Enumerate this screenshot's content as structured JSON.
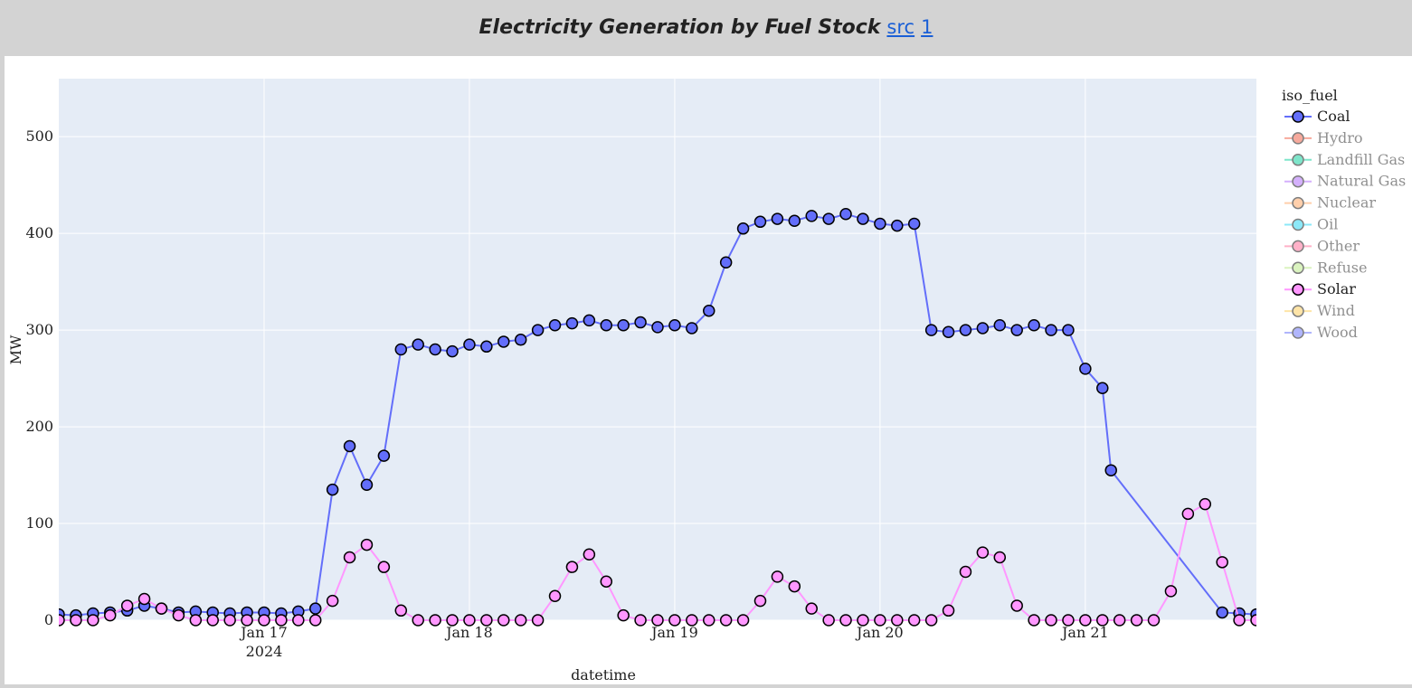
{
  "header": {
    "title": "Electricity Generation by Fuel Stock",
    "links": [
      "src",
      "1"
    ]
  },
  "chart_data": {
    "type": "line",
    "x_label": "datetime",
    "y_label": "MW",
    "legend_title": "iso_fuel",
    "legend_position": "right",
    "grid": true,
    "markers": true,
    "xlim": [
      "2024-01-16 00:00",
      "2024-01-21 20:00"
    ],
    "xticks": [
      {
        "value": "2024-01-17 00:00",
        "label": "Jan 17\n2024"
      },
      {
        "value": "2024-01-18 00:00",
        "label": "Jan 18"
      },
      {
        "value": "2024-01-19 00:00",
        "label": "Jan 19"
      },
      {
        "value": "2024-01-20 00:00",
        "label": "Jan 20"
      },
      {
        "value": "2024-01-21 00:00",
        "label": "Jan 21"
      }
    ],
    "ylim": [
      0,
      560
    ],
    "yticks": [
      0,
      100,
      200,
      300,
      400,
      500
    ],
    "series": [
      {
        "name": "Coal",
        "color": "#636efa",
        "visible": true,
        "x": [
          "2024-01-16 00:00",
          "2024-01-16 02:00",
          "2024-01-16 04:00",
          "2024-01-16 06:00",
          "2024-01-16 08:00",
          "2024-01-16 10:00",
          "2024-01-16 12:00",
          "2024-01-16 14:00",
          "2024-01-16 16:00",
          "2024-01-16 18:00",
          "2024-01-16 20:00",
          "2024-01-16 22:00",
          "2024-01-17 00:00",
          "2024-01-17 02:00",
          "2024-01-17 04:00",
          "2024-01-17 06:00",
          "2024-01-17 08:00",
          "2024-01-17 10:00",
          "2024-01-17 12:00",
          "2024-01-17 14:00",
          "2024-01-17 16:00",
          "2024-01-17 18:00",
          "2024-01-17 20:00",
          "2024-01-17 22:00",
          "2024-01-18 00:00",
          "2024-01-18 02:00",
          "2024-01-18 04:00",
          "2024-01-18 06:00",
          "2024-01-18 08:00",
          "2024-01-18 10:00",
          "2024-01-18 12:00",
          "2024-01-18 14:00",
          "2024-01-18 16:00",
          "2024-01-18 18:00",
          "2024-01-18 20:00",
          "2024-01-18 22:00",
          "2024-01-19 00:00",
          "2024-01-19 02:00",
          "2024-01-19 04:00",
          "2024-01-19 06:00",
          "2024-01-19 08:00",
          "2024-01-19 10:00",
          "2024-01-19 12:00",
          "2024-01-19 14:00",
          "2024-01-19 16:00",
          "2024-01-19 18:00",
          "2024-01-19 20:00",
          "2024-01-19 22:00",
          "2024-01-20 00:00",
          "2024-01-20 02:00",
          "2024-01-20 04:00",
          "2024-01-20 06:00",
          "2024-01-20 08:00",
          "2024-01-20 10:00",
          "2024-01-20 12:00",
          "2024-01-20 14:00",
          "2024-01-20 16:00",
          "2024-01-20 18:00",
          "2024-01-20 20:00",
          "2024-01-20 22:00",
          "2024-01-21 00:00",
          "2024-01-21 02:00",
          "2024-01-21 03:00",
          "2024-01-21 16:00",
          "2024-01-21 18:00",
          "2024-01-21 20:00"
        ],
        "values": [
          6,
          5,
          7,
          8,
          10,
          15,
          12,
          8,
          9,
          8,
          7,
          8,
          8,
          7,
          9,
          12,
          135,
          180,
          140,
          170,
          280,
          285,
          280,
          278,
          285,
          283,
          288,
          290,
          300,
          305,
          307,
          310,
          305,
          305,
          308,
          303,
          305,
          302,
          320,
          370,
          405,
          412,
          415,
          413,
          418,
          415,
          420,
          415,
          410,
          408,
          410,
          300,
          298,
          300,
          302,
          305,
          300,
          305,
          300,
          300,
          260,
          240,
          155,
          8,
          7,
          6
        ]
      },
      {
        "name": "Hydro",
        "color": "#ef553b",
        "visible": false
      },
      {
        "name": "Landfill Gas",
        "color": "#00cc96",
        "visible": false
      },
      {
        "name": "Natural Gas",
        "color": "#ab63fa",
        "visible": false
      },
      {
        "name": "Nuclear",
        "color": "#ffa15a",
        "visible": false
      },
      {
        "name": "Oil",
        "color": "#19d3f3",
        "visible": false
      },
      {
        "name": "Other",
        "color": "#ff6692",
        "visible": false
      },
      {
        "name": "Refuse",
        "color": "#b6e880",
        "visible": false
      },
      {
        "name": "Solar",
        "color": "#ff97ff",
        "visible": true,
        "x": [
          "2024-01-16 00:00",
          "2024-01-16 02:00",
          "2024-01-16 04:00",
          "2024-01-16 06:00",
          "2024-01-16 08:00",
          "2024-01-16 10:00",
          "2024-01-16 12:00",
          "2024-01-16 14:00",
          "2024-01-16 16:00",
          "2024-01-16 18:00",
          "2024-01-16 20:00",
          "2024-01-16 22:00",
          "2024-01-17 00:00",
          "2024-01-17 02:00",
          "2024-01-17 04:00",
          "2024-01-17 06:00",
          "2024-01-17 08:00",
          "2024-01-17 10:00",
          "2024-01-17 12:00",
          "2024-01-17 14:00",
          "2024-01-17 16:00",
          "2024-01-17 18:00",
          "2024-01-17 20:00",
          "2024-01-17 22:00",
          "2024-01-18 00:00",
          "2024-01-18 02:00",
          "2024-01-18 04:00",
          "2024-01-18 06:00",
          "2024-01-18 08:00",
          "2024-01-18 10:00",
          "2024-01-18 12:00",
          "2024-01-18 14:00",
          "2024-01-18 16:00",
          "2024-01-18 18:00",
          "2024-01-18 20:00",
          "2024-01-18 22:00",
          "2024-01-19 00:00",
          "2024-01-19 02:00",
          "2024-01-19 04:00",
          "2024-01-19 06:00",
          "2024-01-19 08:00",
          "2024-01-19 10:00",
          "2024-01-19 12:00",
          "2024-01-19 14:00",
          "2024-01-19 16:00",
          "2024-01-19 18:00",
          "2024-01-19 20:00",
          "2024-01-19 22:00",
          "2024-01-20 00:00",
          "2024-01-20 02:00",
          "2024-01-20 04:00",
          "2024-01-20 06:00",
          "2024-01-20 08:00",
          "2024-01-20 10:00",
          "2024-01-20 12:00",
          "2024-01-20 14:00",
          "2024-01-20 16:00",
          "2024-01-20 18:00",
          "2024-01-20 20:00",
          "2024-01-20 22:00",
          "2024-01-21 00:00",
          "2024-01-21 02:00",
          "2024-01-21 04:00",
          "2024-01-21 06:00",
          "2024-01-21 08:00",
          "2024-01-21 10:00",
          "2024-01-21 12:00",
          "2024-01-21 14:00",
          "2024-01-21 16:00",
          "2024-01-21 18:00",
          "2024-01-21 20:00"
        ],
        "values": [
          0,
          0,
          0,
          5,
          15,
          22,
          12,
          5,
          0,
          0,
          0,
          0,
          0,
          0,
          0,
          0,
          20,
          65,
          78,
          55,
          10,
          0,
          0,
          0,
          0,
          0,
          0,
          0,
          0,
          25,
          55,
          68,
          40,
          5,
          0,
          0,
          0,
          0,
          0,
          0,
          0,
          20,
          45,
          35,
          12,
          0,
          0,
          0,
          0,
          0,
          0,
          0,
          10,
          50,
          70,
          65,
          15,
          0,
          0,
          0,
          0,
          0,
          0,
          0,
          0,
          30,
          110,
          120,
          60,
          0,
          0
        ]
      },
      {
        "name": "Wind",
        "color": "#fecb52",
        "visible": false
      },
      {
        "name": "Wood",
        "color": "#636efa",
        "visible": false
      }
    ]
  }
}
